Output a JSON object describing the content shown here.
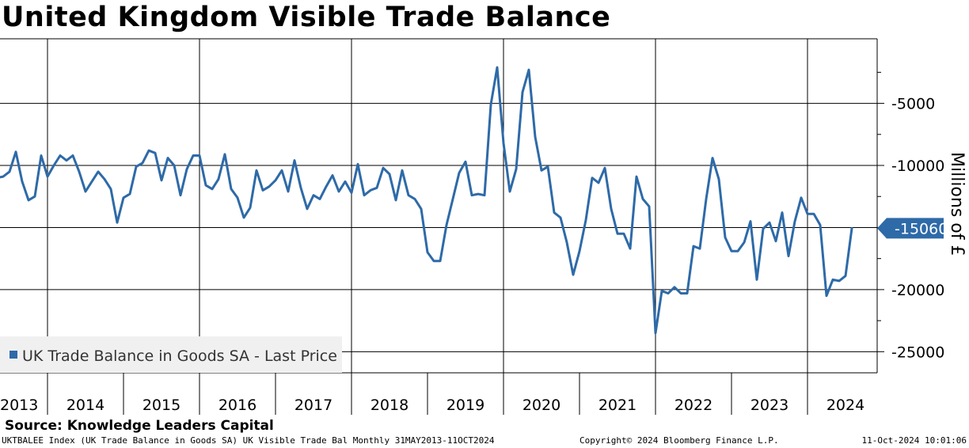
{
  "title": "United Kingdom Visible Trade Balance",
  "source": "Source: Knowledge Leaders Capital",
  "footer": {
    "left": "UKTBALEE Index (UK Trade Balance in Goods SA) UK Visible Trade Bal  Monthly 31MAY2013-11OCT2024",
    "middle": "Copyright© 2024 Bloomberg Finance L.P.",
    "right": "11-Oct-2024 10:01:06"
  },
  "colors": {
    "series": "#2e6aa8",
    "grid": "#000000",
    "legend_bg": "#f0f0f0"
  },
  "chart_data": {
    "type": "line",
    "title": "United Kingdom Visible Trade Balance",
    "ylabel": "Millions of £",
    "ylim": [
      -26700,
      200
    ],
    "y_ticks": [
      -5000,
      -10000,
      -15000,
      -20000,
      -25000
    ],
    "y_tick_labels": [
      "-5000",
      "-10000",
      "-15000",
      "-20000",
      "-25000"
    ],
    "x_labels": [
      "2013",
      "2014",
      "2015",
      "2016",
      "2017",
      "2018",
      "2019",
      "2020",
      "2021",
      "2022",
      "2023",
      "2024"
    ],
    "start": "2013-05",
    "end": "2024-08",
    "legend": "UK Trade Balance in Goods SA - Last Price",
    "last_value_label": "-15060",
    "series": [
      {
        "name": "UK Trade Balance in Goods SA - Last Price",
        "values": [
          -11000,
          -10900,
          -10500,
          -8900,
          -11300,
          -12800,
          -12500,
          -9200,
          -10900,
          -10000,
          -9200,
          -9600,
          -9200,
          -10500,
          -12100,
          -11300,
          -10500,
          -11100,
          -11900,
          -14600,
          -12600,
          -12300,
          -10100,
          -9800,
          -8800,
          -9000,
          -11200,
          -9400,
          -10000,
          -12400,
          -10300,
          -9200,
          -9200,
          -11600,
          -11900,
          -11100,
          -9100,
          -11900,
          -12600,
          -14200,
          -13400,
          -10400,
          -12000,
          -11700,
          -11200,
          -10400,
          -12100,
          -9600,
          -11800,
          -13500,
          -12400,
          -12700,
          -11700,
          -10800,
          -12100,
          -11300,
          -12200,
          -9900,
          -12400,
          -12000,
          -11800,
          -10200,
          -10700,
          -12800,
          -10400,
          -12400,
          -12700,
          -13500,
          -17000,
          -17700,
          -17700,
          -14800,
          -12700,
          -10600,
          -9700,
          -12400,
          -12300,
          -12400,
          -5100,
          -2100,
          -8200,
          -12100,
          -10300,
          -4100,
          -2300,
          -7700,
          -10400,
          -10100,
          -13800,
          -14200,
          -16200,
          -18800,
          -16900,
          -14400,
          -11000,
          -11400,
          -10200,
          -13500,
          -15500,
          -15500,
          -16700,
          -10900,
          -12700,
          -13300,
          -23500,
          -20100,
          -20300,
          -19800,
          -20300,
          -20300,
          -16500,
          -16700,
          -12700,
          -9400,
          -11100,
          -15800,
          -16900,
          -16900,
          -16200,
          -14500,
          -19200,
          -15100,
          -14600,
          -16100,
          -13800,
          -17300,
          -14500,
          -12600,
          -13900,
          -13900,
          -14800,
          -20500,
          -19200,
          -19300,
          -18900,
          -15060
        ]
      }
    ]
  }
}
